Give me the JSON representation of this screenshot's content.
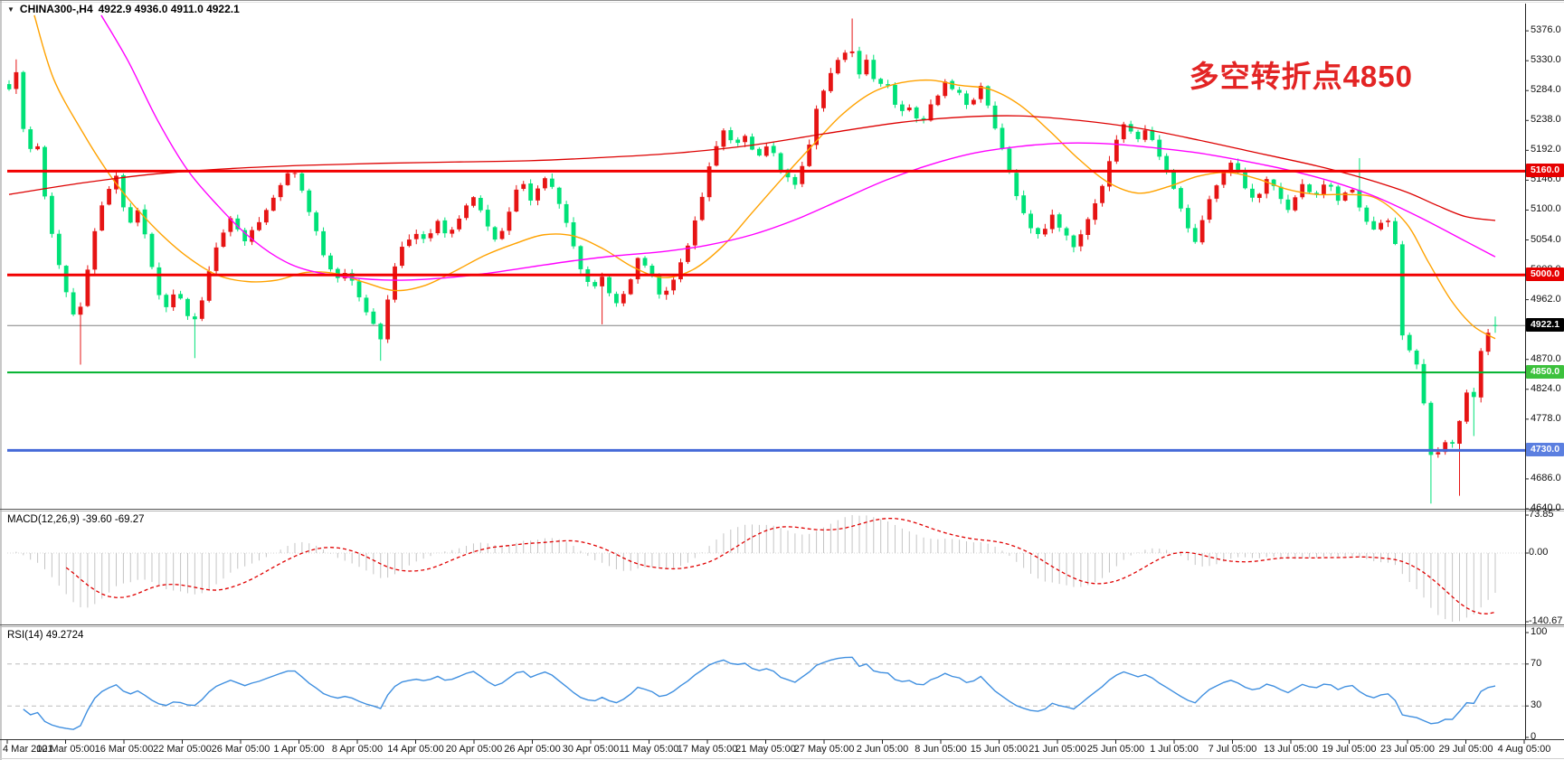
{
  "window": {
    "title_symbol": "CHINA300-,H4",
    "title_ohlc": "4922.9 4936.0 4911.0 4922.1"
  },
  "icons": {
    "symbol_dropdown": "▼"
  },
  "annotation": {
    "text": "多空转折点4850",
    "color": "#e32424"
  },
  "chart_data": {
    "type": "candlestick",
    "symbol": "CHINA300-",
    "timeframe": "H4",
    "last": {
      "open": 4922.9,
      "high": 4936.0,
      "low": 4911.0,
      "close": 4922.1
    },
    "candle_colors": {
      "up": "#e61414",
      "down": "#00e178"
    },
    "y_axis": {
      "range": [
        4640,
        5404
      ],
      "ticks": [
        5376,
        5330,
        5284,
        5238,
        5192,
        5146,
        5100,
        5054,
        5008,
        4962,
        4916,
        4870,
        4824,
        4778,
        4732,
        4686,
        4640
      ]
    },
    "x_axis": {
      "labels": [
        "4 Mar 2021",
        "10 Mar 05:00",
        "16 Mar 05:00",
        "22 Mar 05:00",
        "26 Mar 05:00",
        "1 Apr 05:00",
        "8 Apr 05:00",
        "14 Apr 05:00",
        "20 Apr 05:00",
        "26 Apr 05:00",
        "30 Apr 05:00",
        "11 May 05:00",
        "17 May 05:00",
        "21 May 05:00",
        "27 May 05:00",
        "2 Jun 05:00",
        "8 Jun 05:00",
        "15 Jun 05:00",
        "21 Jun 05:00",
        "25 Jun 05:00",
        "1 Jul 05:00",
        "7 Jul 05:00",
        "13 Jul 05:00",
        "19 Jul 05:00",
        "23 Jul 05:00",
        "29 Jul 05:00",
        "4 Aug 05:00"
      ]
    },
    "levels": [
      {
        "value": 5160.0,
        "label": "5160.0",
        "color": "#f20000",
        "badge": "#e60000",
        "width": 3
      },
      {
        "value": 5000.0,
        "label": "5000.0",
        "color": "#f20000",
        "badge": "#e60000",
        "width": 3
      },
      {
        "value": 4850.0,
        "label": "4850.0",
        "color": "#00b22d",
        "badge": "#3cc13c",
        "width": 2
      },
      {
        "value": 4730.0,
        "label": "4730.0",
        "color": "#4569d8",
        "badge": "#5b7fe0",
        "width": 3
      }
    ],
    "current_price": {
      "value": 4922.1,
      "label": "4922.1",
      "line_color": "#808080",
      "badge": "#000000"
    },
    "candles_count": 209,
    "price_path": [
      [
        0.0,
        5290
      ],
      [
        0.005,
        5315
      ],
      [
        0.012,
        5180
      ],
      [
        0.018,
        5215
      ],
      [
        0.024,
        5125
      ],
      [
        0.03,
        5050
      ],
      [
        0.036,
        4990
      ],
      [
        0.042,
        4945
      ],
      [
        0.046,
        4925
      ],
      [
        0.052,
        5000
      ],
      [
        0.058,
        5075
      ],
      [
        0.065,
        5120
      ],
      [
        0.072,
        5150
      ],
      [
        0.08,
        5075
      ],
      [
        0.088,
        5100
      ],
      [
        0.096,
        5010
      ],
      [
        0.104,
        4945
      ],
      [
        0.112,
        4975
      ],
      [
        0.12,
        4940
      ],
      [
        0.126,
        4930
      ],
      [
        0.134,
        5000
      ],
      [
        0.142,
        5060
      ],
      [
        0.15,
        5090
      ],
      [
        0.158,
        5055
      ],
      [
        0.166,
        5070
      ],
      [
        0.174,
        5105
      ],
      [
        0.182,
        5140
      ],
      [
        0.189,
        5165
      ],
      [
        0.196,
        5140
      ],
      [
        0.204,
        5085
      ],
      [
        0.212,
        5025
      ],
      [
        0.22,
        4990
      ],
      [
        0.228,
        5005
      ],
      [
        0.236,
        4965
      ],
      [
        0.244,
        4930
      ],
      [
        0.25,
        4905
      ],
      [
        0.257,
        4990
      ],
      [
        0.264,
        5040
      ],
      [
        0.272,
        5065
      ],
      [
        0.28,
        5050
      ],
      [
        0.288,
        5080
      ],
      [
        0.296,
        5062
      ],
      [
        0.304,
        5090
      ],
      [
        0.312,
        5118
      ],
      [
        0.32,
        5085
      ],
      [
        0.328,
        5052
      ],
      [
        0.336,
        5090
      ],
      [
        0.344,
        5148
      ],
      [
        0.352,
        5112
      ],
      [
        0.36,
        5148
      ],
      [
        0.368,
        5130
      ],
      [
        0.376,
        5068
      ],
      [
        0.384,
        5015
      ],
      [
        0.392,
        4978
      ],
      [
        0.4,
        4995
      ],
      [
        0.408,
        4952
      ],
      [
        0.416,
        4975
      ],
      [
        0.424,
        5028
      ],
      [
        0.432,
        5002
      ],
      [
        0.44,
        4962
      ],
      [
        0.448,
        5000
      ],
      [
        0.456,
        5040
      ],
      [
        0.464,
        5098
      ],
      [
        0.472,
        5175
      ],
      [
        0.48,
        5228
      ],
      [
        0.488,
        5200
      ],
      [
        0.496,
        5212
      ],
      [
        0.504,
        5182
      ],
      [
        0.512,
        5200
      ],
      [
        0.52,
        5162
      ],
      [
        0.528,
        5135
      ],
      [
        0.536,
        5180
      ],
      [
        0.544,
        5262
      ],
      [
        0.552,
        5308
      ],
      [
        0.56,
        5338
      ],
      [
        0.566,
        5352
      ],
      [
        0.572,
        5310
      ],
      [
        0.578,
        5332
      ],
      [
        0.584,
        5285
      ],
      [
        0.59,
        5302
      ],
      [
        0.598,
        5245
      ],
      [
        0.606,
        5262
      ],
      [
        0.614,
        5232
      ],
      [
        0.622,
        5268
      ],
      [
        0.63,
        5298
      ],
      [
        0.638,
        5282
      ],
      [
        0.646,
        5262
      ],
      [
        0.654,
        5288
      ],
      [
        0.662,
        5235
      ],
      [
        0.67,
        5180
      ],
      [
        0.678,
        5125
      ],
      [
        0.686,
        5078
      ],
      [
        0.694,
        5062
      ],
      [
        0.702,
        5092
      ],
      [
        0.71,
        5062
      ],
      [
        0.718,
        5042
      ],
      [
        0.726,
        5088
      ],
      [
        0.734,
        5130
      ],
      [
        0.742,
        5188
      ],
      [
        0.75,
        5228
      ],
      [
        0.758,
        5210
      ],
      [
        0.766,
        5228
      ],
      [
        0.774,
        5185
      ],
      [
        0.782,
        5140
      ],
      [
        0.79,
        5092
      ],
      [
        0.798,
        5052
      ],
      [
        0.806,
        5108
      ],
      [
        0.814,
        5148
      ],
      [
        0.822,
        5175
      ],
      [
        0.83,
        5142
      ],
      [
        0.838,
        5112
      ],
      [
        0.846,
        5148
      ],
      [
        0.854,
        5128
      ],
      [
        0.862,
        5098
      ],
      [
        0.87,
        5145
      ],
      [
        0.878,
        5118
      ],
      [
        0.886,
        5148
      ],
      [
        0.894,
        5112
      ],
      [
        0.902,
        5138
      ],
      [
        0.91,
        5100
      ],
      [
        0.918,
        5065
      ],
      [
        0.926,
        5085
      ],
      [
        0.932,
        5072
      ],
      [
        0.936,
        4920
      ],
      [
        0.941,
        4890
      ],
      [
        0.946,
        4862
      ],
      [
        0.95,
        4865
      ],
      [
        0.954,
        4740
      ],
      [
        0.958,
        4718
      ],
      [
        0.962,
        4732
      ],
      [
        0.966,
        4742
      ],
      [
        0.97,
        4733
      ],
      [
        0.974,
        4746
      ],
      [
        0.978,
        4800
      ],
      [
        0.982,
        4826
      ],
      [
        0.986,
        4806
      ],
      [
        0.99,
        4880
      ],
      [
        0.995,
        4908
      ],
      [
        1.0,
        4922
      ]
    ],
    "spikes": [
      {
        "t": 0.005,
        "type": "high",
        "value": 5332
      },
      {
        "t": 0.046,
        "type": "low",
        "value": 4862
      },
      {
        "t": 0.126,
        "type": "low",
        "value": 4872
      },
      {
        "t": 0.25,
        "type": "low",
        "value": 4868
      },
      {
        "t": 0.398,
        "type": "low",
        "value": 4924
      },
      {
        "t": 0.566,
        "type": "high",
        "value": 5395
      },
      {
        "t": 0.91,
        "type": "high",
        "value": 5180
      },
      {
        "t": 0.958,
        "type": "low",
        "value": 4648
      },
      {
        "t": 0.974,
        "type": "low",
        "value": 4660
      },
      {
        "t": 0.986,
        "type": "low",
        "value": 4752
      }
    ],
    "moving_averages": [
      {
        "name": "ma-fast-orange",
        "color": "#ffa200",
        "width": 1.4,
        "points": [
          [
            0.017,
            5400
          ],
          [
            0.03,
            5302
          ],
          [
            0.05,
            5218
          ],
          [
            0.066,
            5160
          ],
          [
            0.08,
            5118
          ],
          [
            0.1,
            5068
          ],
          [
            0.12,
            5028
          ],
          [
            0.14,
            5000
          ],
          [
            0.16,
            4990
          ],
          [
            0.18,
            4992
          ],
          [
            0.2,
            5004
          ],
          [
            0.22,
            5002
          ],
          [
            0.24,
            4988
          ],
          [
            0.26,
            4976
          ],
          [
            0.28,
            4984
          ],
          [
            0.3,
            5006
          ],
          [
            0.32,
            5030
          ],
          [
            0.34,
            5048
          ],
          [
            0.36,
            5062
          ],
          [
            0.38,
            5060
          ],
          [
            0.4,
            5040
          ],
          [
            0.42,
            5012
          ],
          [
            0.44,
            4996
          ],
          [
            0.46,
            5008
          ],
          [
            0.48,
            5044
          ],
          [
            0.5,
            5096
          ],
          [
            0.52,
            5148
          ],
          [
            0.54,
            5198
          ],
          [
            0.56,
            5246
          ],
          [
            0.58,
            5280
          ],
          [
            0.6,
            5296
          ],
          [
            0.62,
            5300
          ],
          [
            0.64,
            5292
          ],
          [
            0.66,
            5286
          ],
          [
            0.68,
            5262
          ],
          [
            0.7,
            5222
          ],
          [
            0.72,
            5178
          ],
          [
            0.74,
            5142
          ],
          [
            0.76,
            5126
          ],
          [
            0.78,
            5136
          ],
          [
            0.8,
            5152
          ],
          [
            0.82,
            5158
          ],
          [
            0.84,
            5148
          ],
          [
            0.86,
            5132
          ],
          [
            0.88,
            5124
          ],
          [
            0.9,
            5124
          ],
          [
            0.92,
            5118
          ],
          [
            0.94,
            5080
          ],
          [
            0.955,
            5020
          ],
          [
            0.97,
            4962
          ],
          [
            0.985,
            4922
          ],
          [
            1,
            4902
          ]
        ]
      },
      {
        "name": "ma-mid-magenta",
        "color": "#ff00ff",
        "width": 1.4,
        "points": [
          [
            0.062,
            5400
          ],
          [
            0.08,
            5330
          ],
          [
            0.1,
            5238
          ],
          [
            0.12,
            5162
          ],
          [
            0.14,
            5108
          ],
          [
            0.16,
            5062
          ],
          [
            0.18,
            5028
          ],
          [
            0.2,
            5008
          ],
          [
            0.23,
            4996
          ],
          [
            0.26,
            4992
          ],
          [
            0.29,
            4995
          ],
          [
            0.32,
            5002
          ],
          [
            0.35,
            5012
          ],
          [
            0.38,
            5022
          ],
          [
            0.41,
            5030
          ],
          [
            0.44,
            5036
          ],
          [
            0.47,
            5046
          ],
          [
            0.5,
            5062
          ],
          [
            0.53,
            5086
          ],
          [
            0.56,
            5116
          ],
          [
            0.59,
            5146
          ],
          [
            0.62,
            5170
          ],
          [
            0.65,
            5188
          ],
          [
            0.68,
            5198
          ],
          [
            0.71,
            5203
          ],
          [
            0.74,
            5202
          ],
          [
            0.77,
            5196
          ],
          [
            0.8,
            5188
          ],
          [
            0.83,
            5176
          ],
          [
            0.86,
            5162
          ],
          [
            0.89,
            5144
          ],
          [
            0.92,
            5120
          ],
          [
            0.95,
            5088
          ],
          [
            0.98,
            5052
          ],
          [
            1,
            5028
          ]
        ]
      },
      {
        "name": "ma-slow-red",
        "color": "#dd0000",
        "width": 1.3,
        "points": [
          [
            0,
            5124
          ],
          [
            0.05,
            5142
          ],
          [
            0.1,
            5156
          ],
          [
            0.15,
            5164
          ],
          [
            0.2,
            5169
          ],
          [
            0.25,
            5172
          ],
          [
            0.3,
            5174
          ],
          [
            0.35,
            5176
          ],
          [
            0.4,
            5181
          ],
          [
            0.45,
            5188
          ],
          [
            0.5,
            5200
          ],
          [
            0.55,
            5218
          ],
          [
            0.6,
            5235
          ],
          [
            0.64,
            5243
          ],
          [
            0.68,
            5245
          ],
          [
            0.72,
            5238
          ],
          [
            0.76,
            5226
          ],
          [
            0.8,
            5208
          ],
          [
            0.84,
            5188
          ],
          [
            0.88,
            5168
          ],
          [
            0.91,
            5150
          ],
          [
            0.94,
            5128
          ],
          [
            0.96,
            5108
          ],
          [
            0.98,
            5090
          ],
          [
            1,
            5084
          ]
        ]
      }
    ],
    "indicators": [
      {
        "id": "macd",
        "label": "MACD(12,26,9) -39.60 -69.27",
        "fast": 12,
        "slow": 26,
        "signal": 9,
        "main_value": -39.6,
        "signal_value": -69.27,
        "y_ticks": [
          73.85,
          0,
          -140.67
        ],
        "histogram_color": "#c4c4c4",
        "signal_color": "#e00000"
      },
      {
        "id": "rsi",
        "label": "RSI(14) 49.2724",
        "period": 14,
        "value": 49.2724,
        "y_ticks": [
          100,
          70,
          30,
          0
        ],
        "levels": [
          70,
          30
        ],
        "line_color": "#3f8fe0",
        "level_color": "#bbbbbb"
      }
    ]
  }
}
